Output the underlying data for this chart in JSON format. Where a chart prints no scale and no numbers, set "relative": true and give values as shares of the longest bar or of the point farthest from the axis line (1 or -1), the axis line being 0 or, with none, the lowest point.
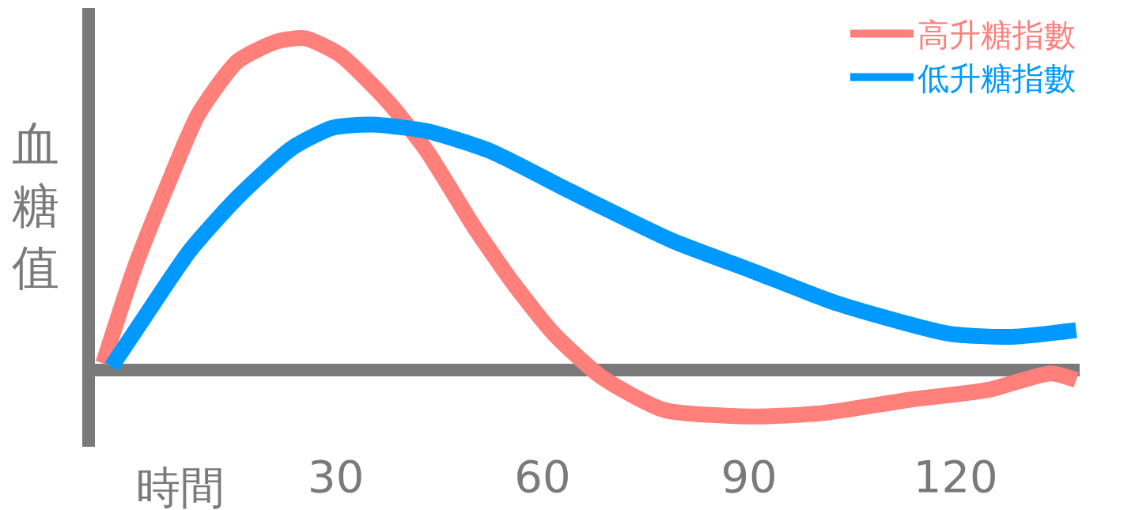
{
  "chart_data": {
    "type": "line",
    "relative": true,
    "xlabel": "時間",
    "ylabel": "血糖值",
    "xlim": [
      -5,
      138
    ],
    "xticks": [
      30,
      60,
      90,
      120
    ],
    "legend": "top right",
    "marker": "none",
    "line_style": "solid",
    "series": [
      {
        "name": "高升糖指數",
        "color": "#ff7f7a",
        "x": [
          -3.8,
          0.8,
          5.4,
          10,
          15.7,
          21.4,
          25.5,
          30.6,
          37.5,
          43.2,
          50.1,
          55.8,
          61.6,
          68.5,
          77.6,
          90.3,
          100.6,
          113.2,
          124.7,
          133.8,
          137.5
        ],
        "values": [
          0.02,
          0.31,
          0.55,
          0.77,
          0.93,
          0.99,
          1.0,
          0.95,
          0.81,
          0.66,
          0.43,
          0.26,
          0.11,
          -0.02,
          -0.12,
          -0.14,
          -0.13,
          -0.09,
          -0.06,
          -0.01,
          -0.03
        ]
      },
      {
        "name": "低升糖指數",
        "color": "#0099ff",
        "x": [
          -2.6,
          1.9,
          8.8,
          15.7,
          23.7,
          29.5,
          35.2,
          43.2,
          52.4,
          63.9,
          78.8,
          90.3,
          102.9,
          118.9,
          128.1,
          137.5
        ],
        "values": [
          0.01,
          0.15,
          0.36,
          0.52,
          0.67,
          0.73,
          0.74,
          0.72,
          0.66,
          0.54,
          0.39,
          0.3,
          0.2,
          0.11,
          0.1,
          0.12
        ]
      }
    ]
  }
}
